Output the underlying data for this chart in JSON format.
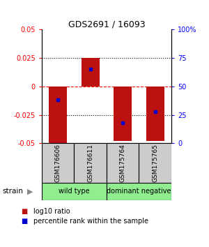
{
  "title": "GDS2691 / 16093",
  "samples": [
    "GSM176606",
    "GSM176611",
    "GSM175764",
    "GSM175765"
  ],
  "log10_ratio": [
    -0.05,
    0.025,
    -0.048,
    -0.048
  ],
  "percentile_rank": [
    0.38,
    0.65,
    0.18,
    0.28
  ],
  "bar_color": "#BB1111",
  "dot_color": "#0000CC",
  "ylim": [
    -0.05,
    0.05
  ],
  "yticks_left": [
    -0.05,
    -0.025,
    0,
    0.025,
    0.05
  ],
  "yticks_right": [
    0,
    25,
    50,
    75,
    100
  ],
  "ytick_labels_left": [
    "-0.05",
    "-0.025",
    "0",
    "0.025",
    "0.05"
  ],
  "ytick_labels_right": [
    "0",
    "25",
    "50",
    "75",
    "100%"
  ],
  "bar_width": 0.55,
  "group_labels": [
    "wild type",
    "dominant negative"
  ],
  "group_color": "#90EE90",
  "sample_box_color": "#cccccc",
  "strain_label": "strain",
  "legend_items": [
    {
      "color": "#BB1111",
      "label": "log10 ratio"
    },
    {
      "color": "#0000CC",
      "label": "percentile rank within the sample"
    }
  ]
}
